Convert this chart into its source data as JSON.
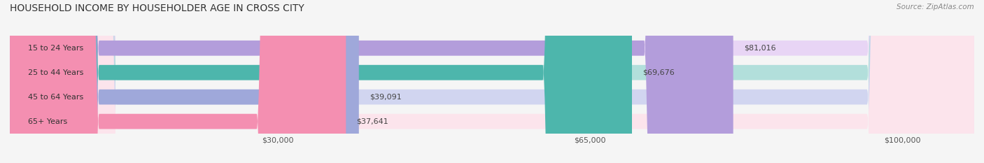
{
  "title": "HOUSEHOLD INCOME BY HOUSEHOLDER AGE IN CROSS CITY",
  "source": "Source: ZipAtlas.com",
  "categories": [
    "15 to 24 Years",
    "25 to 44 Years",
    "45 to 64 Years",
    "65+ Years"
  ],
  "values": [
    81016,
    69676,
    39091,
    37641
  ],
  "bar_colors": [
    "#b39ddb",
    "#4db6ac",
    "#9fa8da",
    "#f48fb1"
  ],
  "bar_colors_light": [
    "#e8d5f5",
    "#b2dfdb",
    "#d1d5f0",
    "#fce4ec"
  ],
  "x_ticks": [
    30000,
    65000,
    100000
  ],
  "x_tick_labels": [
    "$30,000",
    "$65,000",
    "$100,000"
  ],
  "xlim": [
    0,
    108000
  ],
  "bar_height": 0.62,
  "background_color": "#f5f5f5",
  "title_fontsize": 10,
  "label_fontsize": 8,
  "value_fontsize": 8,
  "source_fontsize": 7.5
}
